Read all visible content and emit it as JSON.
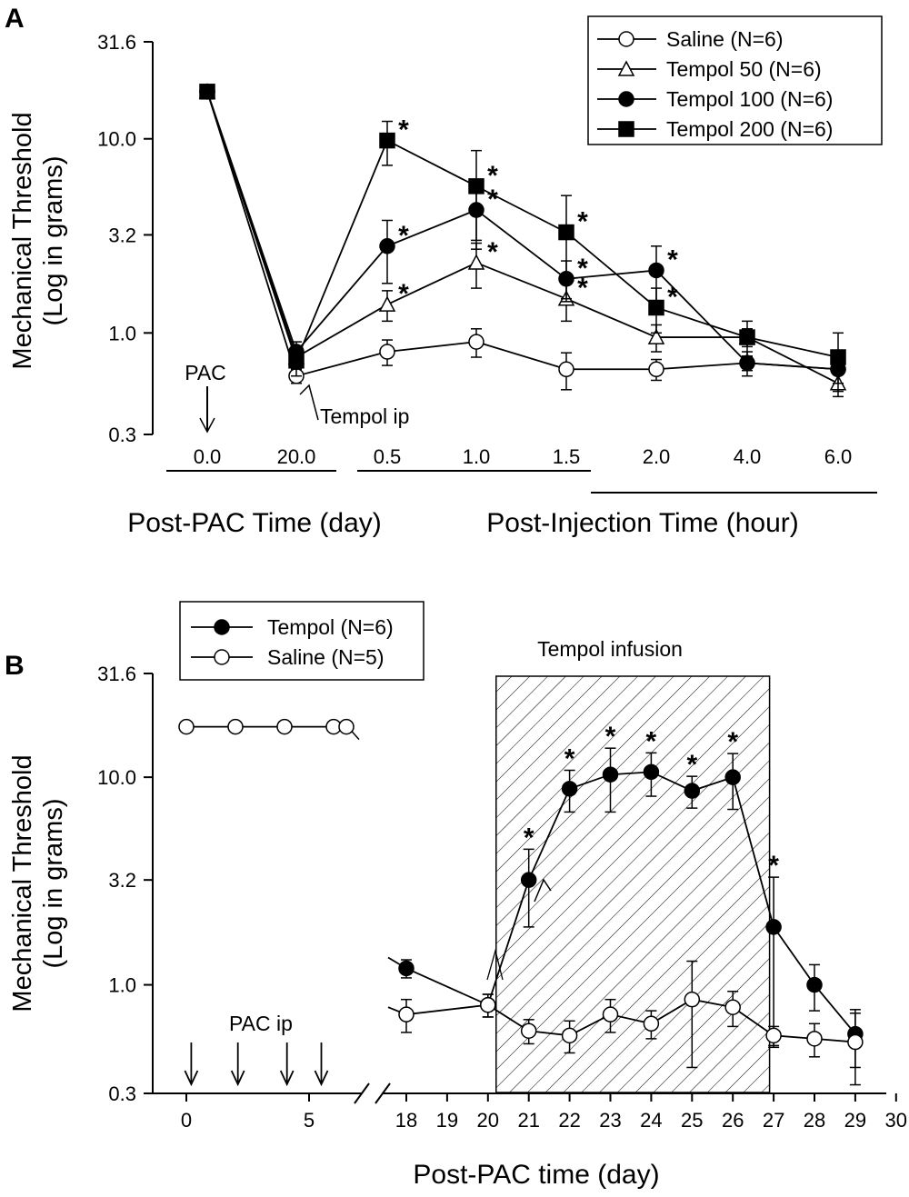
{
  "chart_data": [
    {
      "panel": "A",
      "type": "line",
      "ylabel": "Mechanical Threshold",
      "ylabel2": "(Log in grams)",
      "yscale": "log",
      "ylim": [
        0.3,
        31.6
      ],
      "yticks": [
        "31.6",
        "10.0",
        "3.2",
        "1.0",
        "0.3"
      ],
      "categories": [
        "0.0",
        "20.0",
        "0.5",
        "1.0",
        "1.5",
        "2.0",
        "4.0",
        "6.0"
      ],
      "xlabel_day": "Post-PAC Time (day)",
      "xlabel_hour": "Post-Injection Time (hour)",
      "annotations": [
        "PAC",
        "Tempol ip"
      ],
      "legend_position": "top-right",
      "sig_marker": "*",
      "series": [
        {
          "name": "Saline (N=6)",
          "marker": "circle-open",
          "values": [
            17.5,
            0.6,
            0.8,
            0.9,
            0.65,
            0.65,
            0.7,
            0.65
          ],
          "err": [
            0,
            0.05,
            0.12,
            0.15,
            0.14,
            0.08,
            0.06,
            0.1
          ],
          "sig": [
            false,
            false,
            false,
            false,
            false,
            false,
            false,
            false
          ]
        },
        {
          "name": "Tempol 50 (N=6)",
          "marker": "triangle-open",
          "values": [
            17.5,
            0.75,
            1.4,
            2.3,
            1.5,
            0.95,
            0.95,
            0.55
          ],
          "err": [
            0,
            0.1,
            0.25,
            0.6,
            0.35,
            0.15,
            0.1,
            0.08
          ],
          "sig": [
            false,
            false,
            true,
            true,
            true,
            false,
            false,
            false
          ]
        },
        {
          "name": "Tempol 100 (N=6)",
          "marker": "circle-filled",
          "values": [
            17.5,
            0.8,
            2.8,
            4.3,
            1.9,
            2.1,
            0.7,
            0.65
          ],
          "err": [
            0,
            0.1,
            1.0,
            1.3,
            0.45,
            0.7,
            0.1,
            0.1
          ],
          "sig": [
            false,
            false,
            true,
            true,
            true,
            true,
            false,
            false
          ]
        },
        {
          "name": "Tempol 200 (N=6)",
          "marker": "square-filled",
          "values": [
            17.5,
            0.72,
            9.8,
            5.7,
            3.3,
            1.35,
            0.95,
            0.75
          ],
          "err": [
            0,
            0.12,
            2.5,
            3.0,
            1.8,
            0.35,
            0.2,
            0.25
          ],
          "sig": [
            false,
            false,
            true,
            true,
            true,
            true,
            false,
            false
          ]
        }
      ]
    },
    {
      "panel": "B",
      "type": "line",
      "ylabel": "Mechanical Threshold",
      "ylabel2": "(Log in grams)",
      "yscale": "log",
      "ylim": [
        0.3,
        31.6
      ],
      "yticks": [
        "31.6",
        "10.0",
        "3.2",
        "1.0",
        "0.3"
      ],
      "xticks_left": [
        "0",
        "5"
      ],
      "xticks_right": [
        "18",
        "19",
        "20",
        "21",
        "22",
        "23",
        "24",
        "25",
        "26",
        "27",
        "28",
        "29",
        "30"
      ],
      "xlabel": "Post-PAC time (day)",
      "shaded_label": "Tempol infusion",
      "shaded_range": [
        20.2,
        26.9
      ],
      "pac_label": "PAC ip",
      "pac_days": [
        0.2,
        2.1,
        4.1,
        5.5
      ],
      "baseline_days": [
        0,
        2,
        4,
        6,
        7
      ],
      "baseline_value": 17.5,
      "legend_position": "top-left",
      "sig_marker": "*",
      "series": [
        {
          "name": "Tempol (N=6)",
          "marker": "circle-filled",
          "x": [
            18,
            20,
            21,
            22,
            23,
            24,
            25,
            26,
            27,
            28,
            29
          ],
          "values": [
            1.2,
            0.8,
            3.2,
            8.8,
            10.3,
            10.6,
            8.6,
            10.0,
            1.9,
            1.0,
            0.58
          ],
          "err": [
            0.12,
            0.1,
            1.3,
            2.0,
            3.5,
            2.5,
            1.5,
            3.0,
            1.4,
            0.25,
            0.18
          ],
          "sig": [
            false,
            false,
            true,
            true,
            true,
            true,
            true,
            true,
            true,
            false,
            false
          ]
        },
        {
          "name": "Saline (N=5)",
          "marker": "circle-open",
          "x": [
            18,
            20,
            21,
            22,
            23,
            24,
            25,
            26,
            27,
            28,
            29
          ],
          "values": [
            0.72,
            0.8,
            0.6,
            0.57,
            0.72,
            0.65,
            0.85,
            0.78,
            0.57,
            0.55,
            0.53
          ],
          "err": [
            0.13,
            0.1,
            0.08,
            0.1,
            0.13,
            0.1,
            0.45,
            0.15,
            0.06,
            0.1,
            0.2
          ],
          "sig": [
            false,
            false,
            false,
            false,
            false,
            false,
            false,
            false,
            false,
            false,
            false
          ]
        }
      ]
    }
  ],
  "panel_labels": [
    "A",
    "B"
  ]
}
